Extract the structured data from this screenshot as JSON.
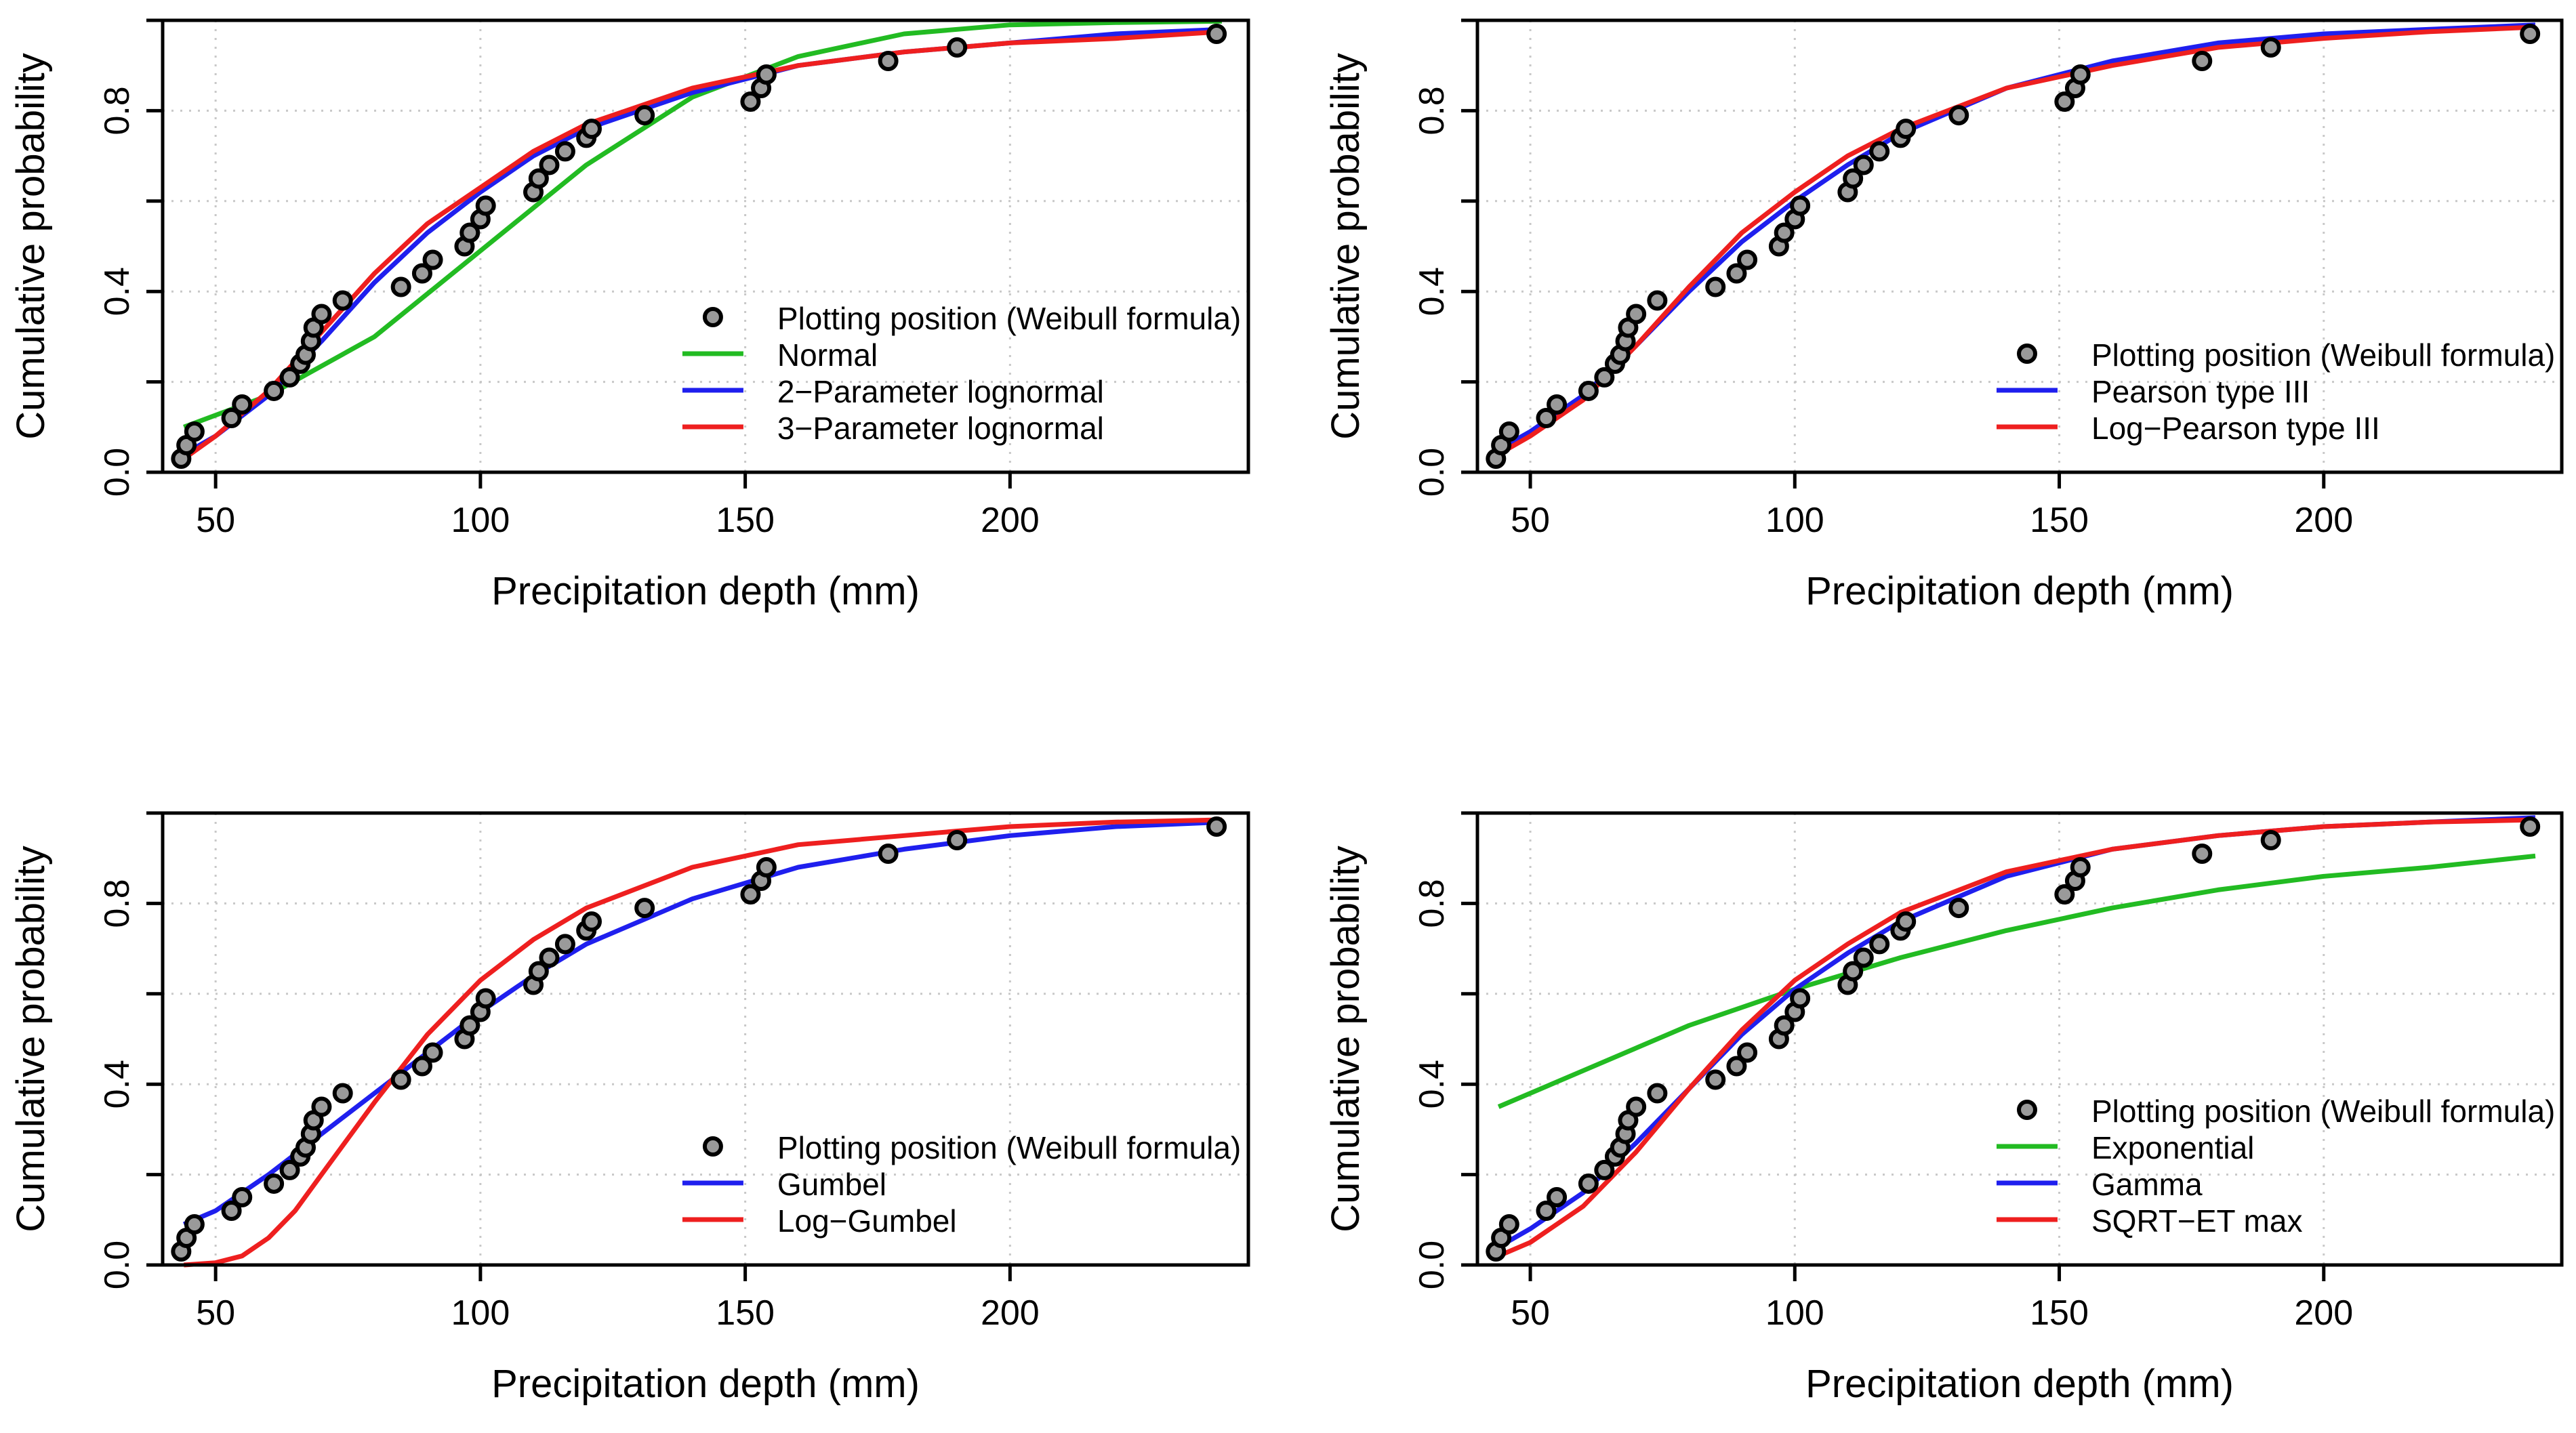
{
  "chart_data": [
    {
      "type": "line",
      "panel": "top-left",
      "xlabel": "Precipitation depth (mm)",
      "ylabel": "Cumulative probability",
      "xlim": [
        40,
        245
      ],
      "ylim": [
        0,
        1
      ],
      "xticks": [
        50,
        100,
        150,
        200
      ],
      "yticks": [
        0.0,
        0.4,
        0.8
      ],
      "ytick_labels": [
        "0.0",
        "0.4",
        "0.8"
      ],
      "grid": true,
      "legend_position": "bottom-right",
      "points": {
        "name": "Plotting position (Weibull formula)",
        "x": [
          43.5,
          44.5,
          46,
          53,
          55,
          61,
          64,
          66,
          67,
          68,
          68.5,
          70,
          74,
          85,
          89,
          91,
          97,
          98,
          100,
          101,
          110,
          111,
          113,
          116,
          120,
          121,
          131,
          151,
          153,
          154,
          177,
          190,
          239
        ],
        "y": [
          0.03,
          0.06,
          0.09,
          0.12,
          0.15,
          0.18,
          0.21,
          0.24,
          0.26,
          0.29,
          0.32,
          0.35,
          0.38,
          0.41,
          0.44,
          0.47,
          0.5,
          0.53,
          0.56,
          0.59,
          0.62,
          0.65,
          0.68,
          0.71,
          0.74,
          0.76,
          0.79,
          0.82,
          0.85,
          0.88,
          0.91,
          0.94,
          0.97
        ]
      },
      "series": [
        {
          "name": "Normal",
          "color": "#22bb22",
          "x": [
            44,
            60,
            80,
            100,
            120,
            140,
            160,
            180,
            200,
            220,
            240
          ],
          "values": [
            0.1,
            0.17,
            0.3,
            0.49,
            0.68,
            0.83,
            0.92,
            0.97,
            0.99,
            0.995,
            0.998
          ]
        },
        {
          "name": "2−Parameter lognormal",
          "color": "#1f1fee",
          "x": [
            44,
            50,
            60,
            70,
            80,
            90,
            100,
            110,
            120,
            140,
            160,
            180,
            200,
            220,
            240
          ],
          "values": [
            0.04,
            0.08,
            0.17,
            0.29,
            0.42,
            0.53,
            0.62,
            0.7,
            0.76,
            0.84,
            0.9,
            0.93,
            0.95,
            0.97,
            0.98
          ]
        },
        {
          "name": "3−Parameter lognormal",
          "color": "#ee1f1f",
          "x": [
            44,
            50,
            60,
            70,
            80,
            90,
            100,
            110,
            120,
            140,
            160,
            180,
            200,
            220,
            240
          ],
          "values": [
            0.03,
            0.08,
            0.18,
            0.31,
            0.44,
            0.55,
            0.63,
            0.71,
            0.77,
            0.85,
            0.9,
            0.93,
            0.95,
            0.96,
            0.975
          ]
        }
      ]
    },
    {
      "type": "line",
      "panel": "top-right",
      "xlabel": "Precipitation depth (mm)",
      "ylabel": "Cumulative probability",
      "xlim": [
        40,
        245
      ],
      "ylim": [
        0,
        1
      ],
      "xticks": [
        50,
        100,
        150,
        200
      ],
      "yticks": [
        0.0,
        0.4,
        0.8
      ],
      "ytick_labels": [
        "0.0",
        "0.4",
        "0.8"
      ],
      "grid": true,
      "legend_position": "bottom-right",
      "points": {
        "name": "Plotting position (Weibull formula)",
        "x": [
          43.5,
          44.5,
          46,
          53,
          55,
          61,
          64,
          66,
          67,
          68,
          68.5,
          70,
          74,
          85,
          89,
          91,
          97,
          98,
          100,
          101,
          110,
          111,
          113,
          116,
          120,
          121,
          131,
          151,
          153,
          154,
          177,
          190,
          239
        ],
        "y": [
          0.03,
          0.06,
          0.09,
          0.12,
          0.15,
          0.18,
          0.21,
          0.24,
          0.26,
          0.29,
          0.32,
          0.35,
          0.38,
          0.41,
          0.44,
          0.47,
          0.5,
          0.53,
          0.56,
          0.59,
          0.62,
          0.65,
          0.68,
          0.71,
          0.74,
          0.76,
          0.79,
          0.82,
          0.85,
          0.88,
          0.91,
          0.94,
          0.97
        ]
      },
      "series": [
        {
          "name": "Pearson type III",
          "color": "#1f1fee",
          "x": [
            44,
            50,
            60,
            70,
            80,
            90,
            100,
            110,
            120,
            140,
            160,
            180,
            200,
            220,
            240
          ],
          "values": [
            0.05,
            0.09,
            0.17,
            0.28,
            0.4,
            0.51,
            0.6,
            0.68,
            0.75,
            0.85,
            0.91,
            0.95,
            0.97,
            0.98,
            0.99
          ]
        },
        {
          "name": "Log−Pearson type III",
          "color": "#ee1f1f",
          "x": [
            44,
            50,
            60,
            70,
            80,
            90,
            100,
            110,
            120,
            140,
            160,
            180,
            200,
            220,
            240
          ],
          "values": [
            0.04,
            0.08,
            0.16,
            0.28,
            0.41,
            0.53,
            0.62,
            0.7,
            0.76,
            0.85,
            0.9,
            0.94,
            0.96,
            0.975,
            0.985
          ]
        }
      ]
    },
    {
      "type": "line",
      "panel": "bottom-left",
      "xlabel": "Precipitation depth (mm)",
      "ylabel": "Cumulative probability",
      "xlim": [
        40,
        245
      ],
      "ylim": [
        0,
        1
      ],
      "xticks": [
        50,
        100,
        150,
        200
      ],
      "yticks": [
        0.0,
        0.4,
        0.8
      ],
      "ytick_labels": [
        "0.0",
        "0.4",
        "0.8"
      ],
      "grid": true,
      "legend_position": "bottom-right",
      "points": {
        "name": "Plotting position (Weibull formula)",
        "x": [
          43.5,
          44.5,
          46,
          53,
          55,
          61,
          64,
          66,
          67,
          68,
          68.5,
          70,
          74,
          85,
          89,
          91,
          97,
          98,
          100,
          101,
          110,
          111,
          113,
          116,
          120,
          121,
          131,
          151,
          153,
          154,
          177,
          190,
          239
        ],
        "y": [
          0.03,
          0.06,
          0.09,
          0.12,
          0.15,
          0.18,
          0.21,
          0.24,
          0.26,
          0.29,
          0.32,
          0.35,
          0.38,
          0.41,
          0.44,
          0.47,
          0.5,
          0.53,
          0.56,
          0.59,
          0.62,
          0.65,
          0.68,
          0.71,
          0.74,
          0.76,
          0.79,
          0.82,
          0.85,
          0.88,
          0.91,
          0.94,
          0.97
        ]
      },
      "series": [
        {
          "name": "Gumbel",
          "color": "#1f1fee",
          "x": [
            44,
            50,
            60,
            70,
            80,
            90,
            100,
            110,
            120,
            140,
            160,
            180,
            200,
            220,
            240
          ],
          "values": [
            0.09,
            0.12,
            0.2,
            0.29,
            0.38,
            0.47,
            0.56,
            0.64,
            0.71,
            0.81,
            0.88,
            0.92,
            0.95,
            0.97,
            0.98
          ]
        },
        {
          "name": "Log−Gumbel",
          "color": "#ee1f1f",
          "x": [
            44,
            50,
            55,
            60,
            65,
            70,
            75,
            80,
            90,
            100,
            110,
            120,
            140,
            160,
            180,
            200,
            220,
            240
          ],
          "values": [
            0.0,
            0.005,
            0.02,
            0.06,
            0.12,
            0.2,
            0.28,
            0.36,
            0.51,
            0.63,
            0.72,
            0.79,
            0.88,
            0.93,
            0.95,
            0.97,
            0.98,
            0.985
          ]
        }
      ]
    },
    {
      "type": "line",
      "panel": "bottom-right",
      "xlabel": "Precipitation depth (mm)",
      "ylabel": "Cumulative probability",
      "xlim": [
        40,
        245
      ],
      "ylim": [
        0,
        1
      ],
      "xticks": [
        50,
        100,
        150,
        200
      ],
      "yticks": [
        0.0,
        0.4,
        0.8
      ],
      "ytick_labels": [
        "0.0",
        "0.4",
        "0.8"
      ],
      "grid": true,
      "legend_position": "bottom-right",
      "points": {
        "name": "Plotting position (Weibull formula)",
        "x": [
          43.5,
          44.5,
          46,
          53,
          55,
          61,
          64,
          66,
          67,
          68,
          68.5,
          70,
          74,
          85,
          89,
          91,
          97,
          98,
          100,
          101,
          110,
          111,
          113,
          116,
          120,
          121,
          131,
          151,
          153,
          154,
          177,
          190,
          239
        ],
        "y": [
          0.03,
          0.06,
          0.09,
          0.12,
          0.15,
          0.18,
          0.21,
          0.24,
          0.26,
          0.29,
          0.32,
          0.35,
          0.38,
          0.41,
          0.44,
          0.47,
          0.5,
          0.53,
          0.56,
          0.59,
          0.62,
          0.65,
          0.68,
          0.71,
          0.74,
          0.76,
          0.79,
          0.82,
          0.85,
          0.88,
          0.91,
          0.94,
          0.97
        ]
      },
      "series": [
        {
          "name": "Exponential",
          "color": "#22bb22",
          "x": [
            44,
            60,
            80,
            100,
            120,
            140,
            160,
            180,
            200,
            220,
            240
          ],
          "values": [
            0.35,
            0.43,
            0.53,
            0.61,
            0.68,
            0.74,
            0.79,
            0.83,
            0.86,
            0.88,
            0.905
          ]
        },
        {
          "name": "Gamma",
          "color": "#1f1fee",
          "x": [
            44,
            50,
            60,
            70,
            80,
            90,
            100,
            110,
            120,
            140,
            160,
            180,
            200,
            220,
            240
          ],
          "values": [
            0.04,
            0.08,
            0.16,
            0.27,
            0.39,
            0.51,
            0.61,
            0.69,
            0.76,
            0.86,
            0.92,
            0.95,
            0.97,
            0.98,
            0.99
          ]
        },
        {
          "name": "SQRT−ET max",
          "color": "#ee1f1f",
          "x": [
            44,
            50,
            60,
            70,
            80,
            90,
            100,
            110,
            120,
            140,
            160,
            180,
            200,
            220,
            240
          ],
          "values": [
            0.02,
            0.05,
            0.13,
            0.25,
            0.39,
            0.52,
            0.63,
            0.71,
            0.78,
            0.87,
            0.92,
            0.95,
            0.97,
            0.98,
            0.985
          ]
        }
      ]
    }
  ]
}
